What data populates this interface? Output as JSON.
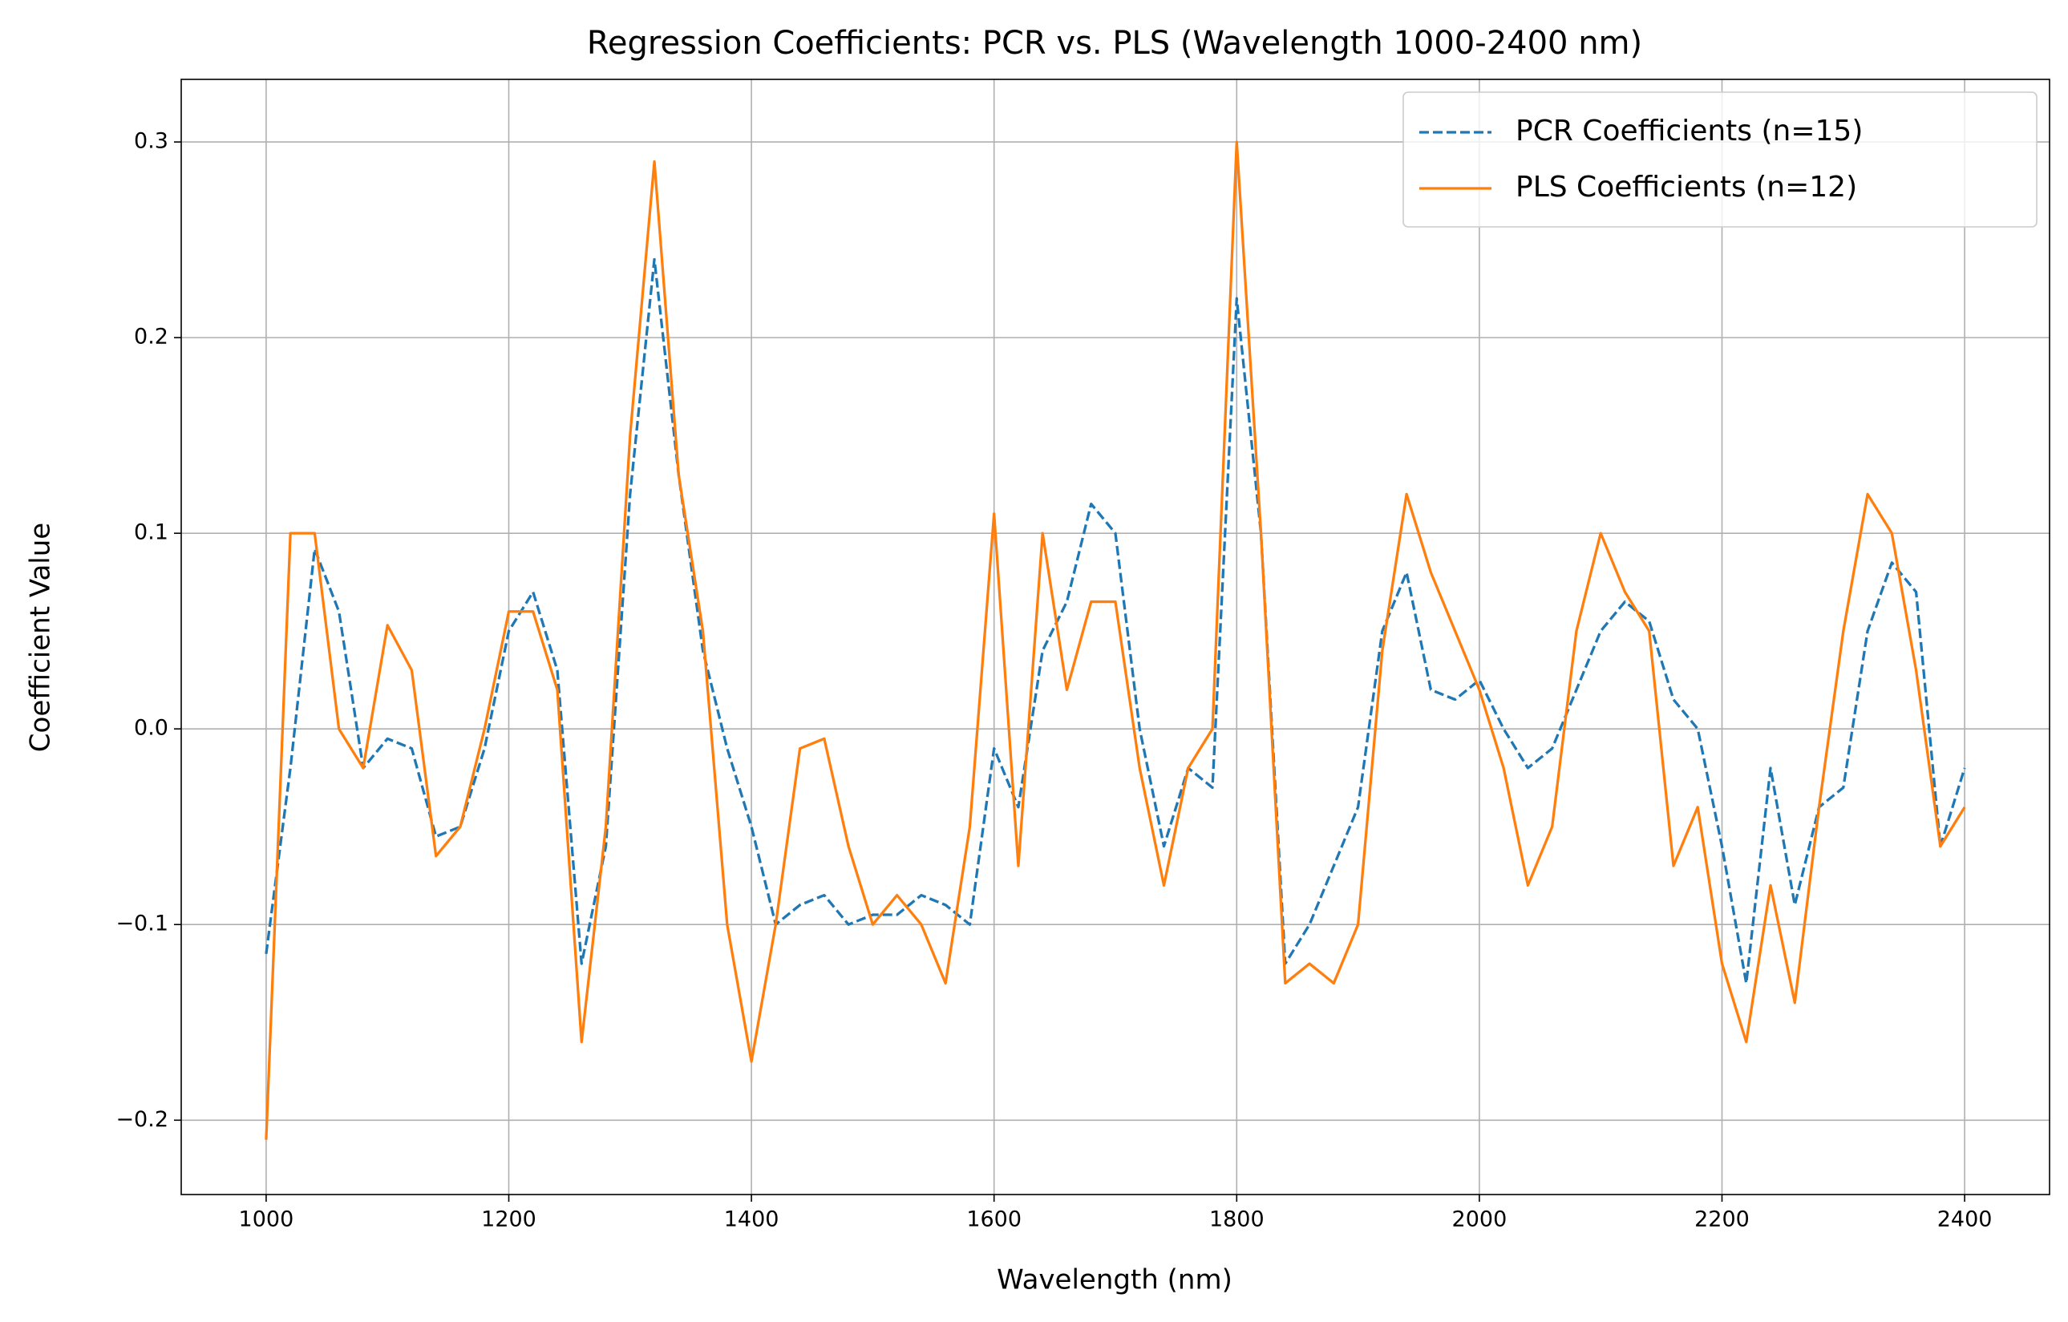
{
  "chart_data": {
    "type": "line",
    "title": "Regression Coefficients: PCR vs. PLS (Wavelength 1000-2400 nm)",
    "xlabel": "Wavelength (nm)",
    "ylabel": "Coefficient Value",
    "x": [
      1000,
      1020,
      1040,
      1060,
      1080,
      1100,
      1120,
      1140,
      1160,
      1180,
      1200,
      1220,
      1240,
      1260,
      1280,
      1300,
      1320,
      1340,
      1360,
      1380,
      1400,
      1420,
      1440,
      1460,
      1480,
      1500,
      1520,
      1540,
      1560,
      1580,
      1600,
      1620,
      1640,
      1660,
      1680,
      1700,
      1720,
      1740,
      1760,
      1780,
      1800,
      1820,
      1840,
      1860,
      1880,
      1900,
      1920,
      1940,
      1960,
      1980,
      2000,
      2020,
      2040,
      2060,
      2080,
      2100,
      2120,
      2140,
      2160,
      2180,
      2200,
      2220,
      2240,
      2260,
      2280,
      2300,
      2320,
      2340,
      2360,
      2380,
      2400
    ],
    "series": [
      {
        "name": "PCR Coefficients (n=15)",
        "color": "#1f77b4",
        "linestyle": "dashed",
        "values": [
          -0.115,
          -0.02,
          0.092,
          0.06,
          -0.02,
          -0.005,
          -0.01,
          -0.055,
          -0.05,
          -0.01,
          0.05,
          0.07,
          0.03,
          -0.12,
          -0.06,
          0.12,
          0.24,
          0.13,
          0.04,
          -0.01,
          -0.05,
          -0.1,
          -0.09,
          -0.085,
          -0.1,
          -0.095,
          -0.095,
          -0.085,
          -0.09,
          -0.1,
          -0.01,
          -0.04,
          0.04,
          0.065,
          0.115,
          0.1,
          0.0,
          -0.06,
          -0.02,
          -0.03,
          0.22,
          0.1,
          -0.12,
          -0.1,
          -0.07,
          -0.04,
          0.05,
          0.08,
          0.02,
          0.015,
          0.025,
          0.0,
          -0.02,
          -0.01,
          0.02,
          0.05,
          0.065,
          0.055,
          0.015,
          0.0,
          -0.06,
          -0.13,
          -0.02,
          -0.09,
          -0.04,
          -0.03,
          0.05,
          0.085,
          0.07,
          -0.06,
          -0.02
        ]
      },
      {
        "name": "PLS Coefficients (n=12)",
        "color": "#ff7f0e",
        "linestyle": "solid",
        "values": [
          -0.21,
          0.1,
          0.1,
          0.0,
          -0.02,
          0.053,
          0.03,
          -0.065,
          -0.05,
          0.0,
          0.06,
          0.06,
          0.02,
          -0.16,
          -0.05,
          0.15,
          0.29,
          0.13,
          0.05,
          -0.1,
          -0.17,
          -0.1,
          -0.01,
          -0.005,
          -0.06,
          -0.1,
          -0.085,
          -0.1,
          -0.13,
          -0.05,
          0.11,
          -0.07,
          0.1,
          0.02,
          0.065,
          0.065,
          -0.02,
          -0.08,
          -0.02,
          0.0,
          0.3,
          0.1,
          -0.13,
          -0.12,
          -0.13,
          -0.1,
          0.04,
          0.12,
          0.08,
          0.05,
          0.02,
          -0.02,
          -0.08,
          -0.05,
          0.05,
          0.1,
          0.07,
          0.05,
          -0.07,
          -0.04,
          -0.12,
          -0.16,
          -0.08,
          -0.14,
          -0.04,
          0.05,
          0.12,
          0.1,
          0.03,
          -0.06,
          -0.04
        ]
      }
    ],
    "xlim": [
      930,
      2470
    ],
    "xticks": [
      1000,
      1200,
      1400,
      1600,
      1800,
      2000,
      2200,
      2400
    ],
    "ylim": [
      -0.238,
      0.332
    ],
    "yticks": [
      {
        "value": -0.2,
        "label": "−0.2"
      },
      {
        "value": -0.1,
        "label": "−0.1"
      },
      {
        "value": 0,
        "label": "0.0"
      },
      0.1,
      0.2,
      0.3
    ],
    "grid": true,
    "legend": "upper right"
  }
}
